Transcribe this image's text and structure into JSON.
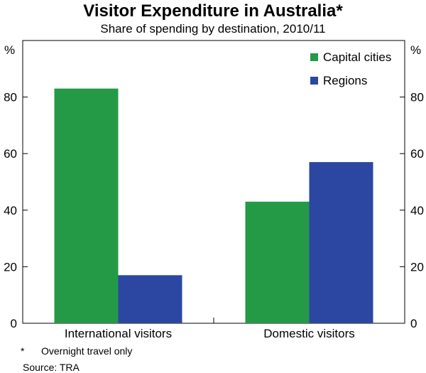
{
  "chart_data": {
    "type": "bar",
    "title": "Visitor Expenditure in Australia*",
    "subtitle": "Share of spending by destination, 2010/11",
    "categories": [
      "International visitors",
      "Domestic visitors"
    ],
    "series": [
      {
        "name": "Capital cities",
        "values": [
          83,
          43
        ],
        "color": "#249a47"
      },
      {
        "name": "Regions",
        "values": [
          17,
          57
        ],
        "color": "#2c47a2"
      }
    ],
    "ylabel_left": "%",
    "ylabel_right": "%",
    "ylim": [
      0,
      100
    ],
    "yticks": [
      0,
      20,
      40,
      60,
      80
    ],
    "grid": false,
    "legend_position": "top-right"
  },
  "footnote": {
    "marker": "*",
    "text": "Overnight travel only"
  },
  "source": "Source: TRA"
}
